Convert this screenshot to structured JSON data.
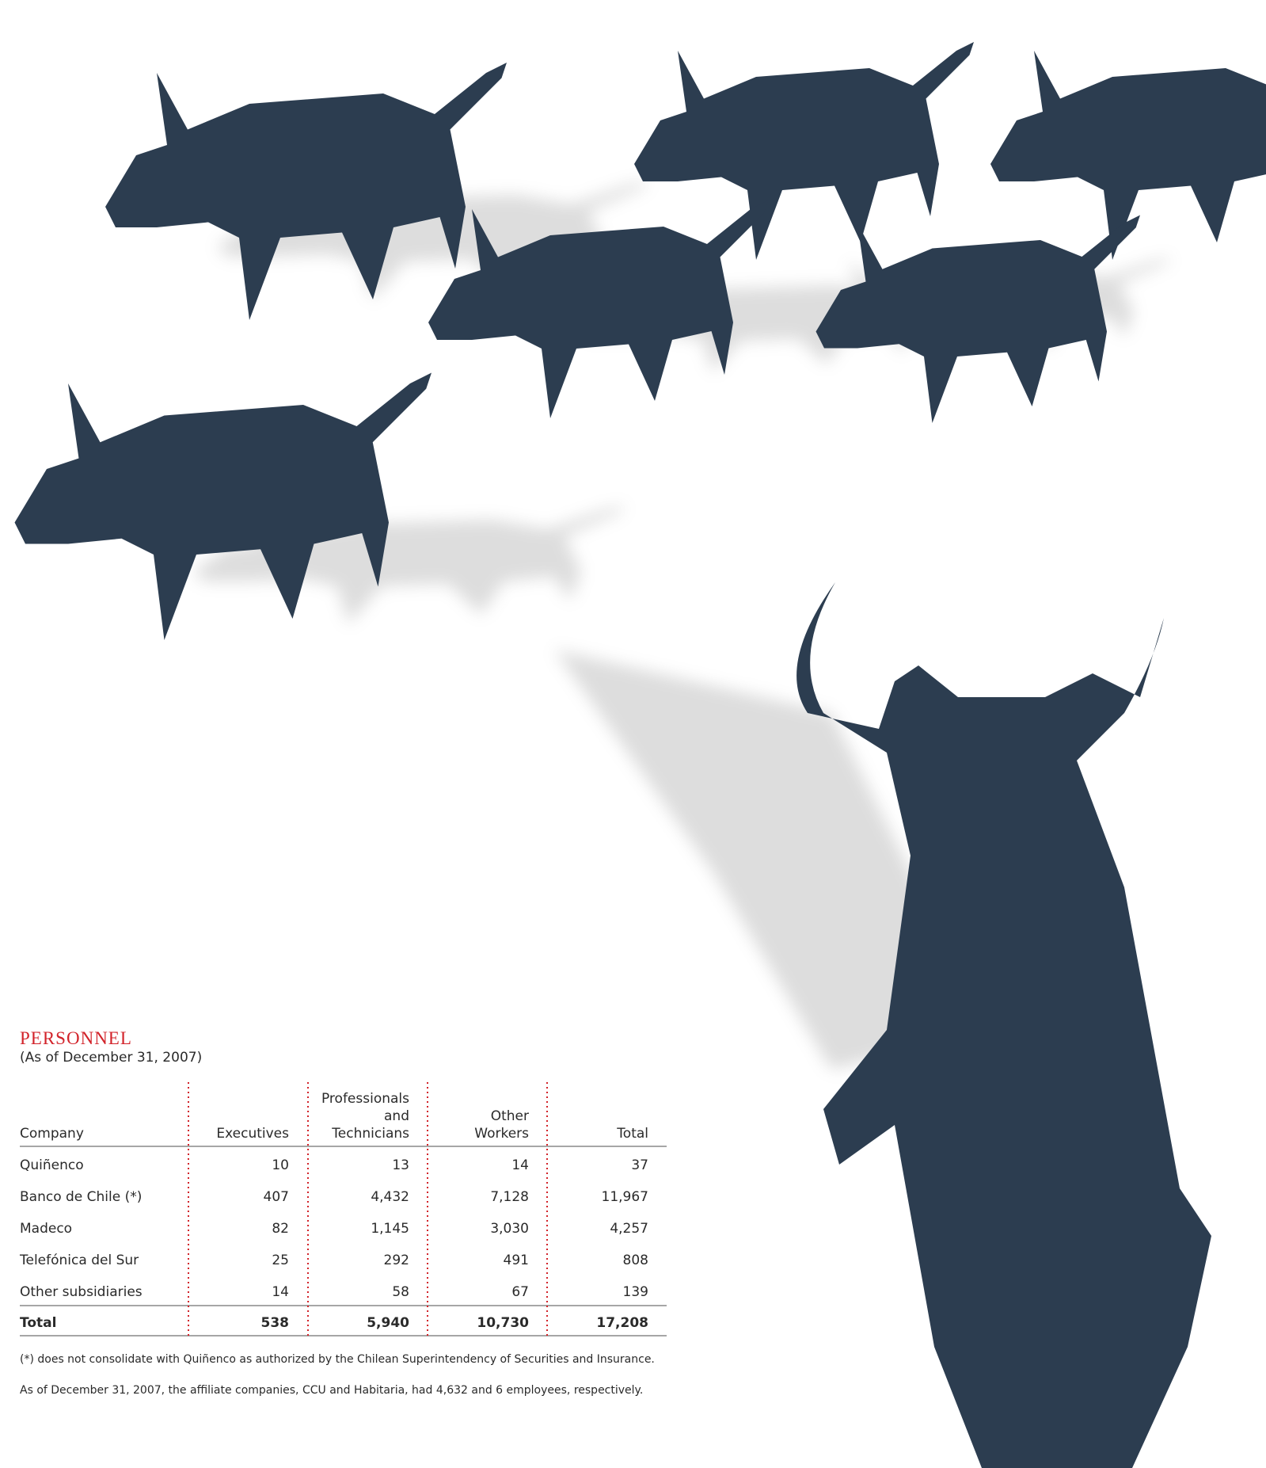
{
  "title": "PERSONNEL",
  "subtitle": "(As of December 31, 2007)",
  "table": {
    "header": [
      [
        "Company"
      ],
      [
        "Executives"
      ],
      [
        "Professionals",
        "and",
        "Technicians"
      ],
      [
        "Other",
        "Workers"
      ],
      [
        "Total"
      ]
    ],
    "rows": [
      [
        "Quiñenco",
        "10",
        "13",
        "14",
        "37"
      ],
      [
        "Banco de Chile (*)",
        "407",
        "4,432",
        "7,128",
        "11,967"
      ],
      [
        "Madeco",
        "82",
        "1,145",
        "3,030",
        "4,257"
      ],
      [
        "Telefónica del Sur",
        "25",
        "292",
        "491",
        "808"
      ],
      [
        "Other subsidiaries",
        "14",
        "58",
        "67",
        "139"
      ]
    ],
    "total": [
      "Total",
      "538",
      "5,940",
      "10,730",
      "17,208"
    ]
  },
  "notes": [
    "(*) does not consolidate with Quiñenco as authorized by the Chilean Superintendency of Securities and Insurance.",
    "As of December 31, 2007, the affiliate companies, CCU and Habitaria, had 4,632 and 6 employees, respectively."
  ]
}
